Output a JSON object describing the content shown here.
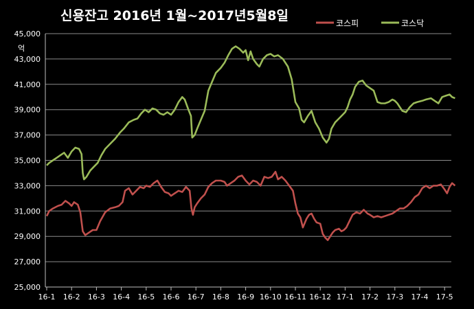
{
  "chart_data": {
    "type": "line",
    "title": "신용잔고 2016년 1월~2017년5월8일",
    "ylabel": "억",
    "xlabel": "",
    "ylim": [
      25000,
      45000
    ],
    "yticks": [
      25000,
      27000,
      29000,
      31000,
      33000,
      35000,
      37000,
      39000,
      41000,
      43000,
      45000
    ],
    "ytick_labels": [
      "25,000",
      "27,000",
      "29,000",
      "31,000",
      "33,000",
      "35,000",
      "37,000",
      "39,000",
      "41,000",
      "43,000",
      "45,000"
    ],
    "xtick_labels": [
      "16-1",
      "16-2",
      "16-3",
      "16-4",
      "16-5",
      "16-6",
      "16-7",
      "16-8",
      "16-9",
      "16-10",
      "16-11",
      "16-12",
      "17-1",
      "17-2",
      "17-3",
      "17-4",
      "17-5"
    ],
    "grid": "horizontal",
    "legend_position": "top-right",
    "x_unit": "months since 2016-01 (fractional)",
    "series": [
      {
        "name": "코스피",
        "color": "#c0504d",
        "points": [
          [
            0.0,
            30600
          ],
          [
            0.1,
            31000
          ],
          [
            0.25,
            31200
          ],
          [
            0.45,
            31400
          ],
          [
            0.6,
            31500
          ],
          [
            0.75,
            31800
          ],
          [
            0.9,
            31600
          ],
          [
            1.0,
            31400
          ],
          [
            1.1,
            31700
          ],
          [
            1.25,
            31500
          ],
          [
            1.35,
            30900
          ],
          [
            1.45,
            29400
          ],
          [
            1.55,
            29100
          ],
          [
            1.7,
            29300
          ],
          [
            1.85,
            29500
          ],
          [
            2.0,
            29500
          ],
          [
            2.15,
            30200
          ],
          [
            2.35,
            30900
          ],
          [
            2.55,
            31200
          ],
          [
            2.75,
            31300
          ],
          [
            2.9,
            31400
          ],
          [
            3.05,
            31700
          ],
          [
            3.15,
            32600
          ],
          [
            3.3,
            32800
          ],
          [
            3.45,
            32300
          ],
          [
            3.6,
            32600
          ],
          [
            3.75,
            32900
          ],
          [
            3.9,
            32800
          ],
          [
            4.0,
            33000
          ],
          [
            4.15,
            32900
          ],
          [
            4.3,
            33200
          ],
          [
            4.45,
            33400
          ],
          [
            4.6,
            32900
          ],
          [
            4.75,
            32500
          ],
          [
            4.9,
            32400
          ],
          [
            5.0,
            32200
          ],
          [
            5.15,
            32400
          ],
          [
            5.3,
            32600
          ],
          [
            5.45,
            32500
          ],
          [
            5.6,
            32900
          ],
          [
            5.75,
            32600
          ],
          [
            5.82,
            31200
          ],
          [
            5.88,
            30700
          ],
          [
            5.95,
            31300
          ],
          [
            6.05,
            31600
          ],
          [
            6.2,
            32000
          ],
          [
            6.35,
            32300
          ],
          [
            6.5,
            32900
          ],
          [
            6.65,
            33200
          ],
          [
            6.8,
            33400
          ],
          [
            7.0,
            33400
          ],
          [
            7.15,
            33300
          ],
          [
            7.25,
            33000
          ],
          [
            7.4,
            33200
          ],
          [
            7.55,
            33400
          ],
          [
            7.7,
            33700
          ],
          [
            7.85,
            33800
          ],
          [
            8.0,
            33400
          ],
          [
            8.15,
            33100
          ],
          [
            8.3,
            33400
          ],
          [
            8.45,
            33300
          ],
          [
            8.6,
            33000
          ],
          [
            8.75,
            33700
          ],
          [
            8.9,
            33600
          ],
          [
            9.05,
            33700
          ],
          [
            9.2,
            34100
          ],
          [
            9.3,
            33500
          ],
          [
            9.45,
            33700
          ],
          [
            9.6,
            33400
          ],
          [
            9.75,
            33000
          ],
          [
            9.9,
            32600
          ],
          [
            10.0,
            31600
          ],
          [
            10.1,
            30800
          ],
          [
            10.2,
            30500
          ],
          [
            10.3,
            29700
          ],
          [
            10.45,
            30400
          ],
          [
            10.55,
            30700
          ],
          [
            10.65,
            30800
          ],
          [
            10.75,
            30400
          ],
          [
            10.85,
            30100
          ],
          [
            11.0,
            30000
          ],
          [
            11.1,
            29200
          ],
          [
            11.2,
            28900
          ],
          [
            11.3,
            28700
          ],
          [
            11.4,
            29000
          ],
          [
            11.5,
            29300
          ],
          [
            11.6,
            29500
          ],
          [
            11.75,
            29600
          ],
          [
            11.85,
            29400
          ],
          [
            11.95,
            29500
          ],
          [
            12.05,
            29700
          ],
          [
            12.2,
            30300
          ],
          [
            12.3,
            30700
          ],
          [
            12.45,
            30900
          ],
          [
            12.6,
            30800
          ],
          [
            12.75,
            31100
          ],
          [
            12.9,
            30800
          ],
          [
            13.0,
            30700
          ],
          [
            13.15,
            30500
          ],
          [
            13.3,
            30600
          ],
          [
            13.45,
            30500
          ],
          [
            13.6,
            30600
          ],
          [
            13.75,
            30700
          ],
          [
            13.9,
            30800
          ],
          [
            14.05,
            31000
          ],
          [
            14.2,
            31200
          ],
          [
            14.35,
            31200
          ],
          [
            14.5,
            31400
          ],
          [
            14.65,
            31700
          ],
          [
            14.8,
            32100
          ],
          [
            14.95,
            32300
          ],
          [
            15.1,
            32800
          ],
          [
            15.25,
            33000
          ],
          [
            15.4,
            32800
          ],
          [
            15.55,
            33000
          ],
          [
            15.7,
            33000
          ],
          [
            15.85,
            33100
          ],
          [
            16.0,
            32700
          ],
          [
            16.1,
            32400
          ],
          [
            16.2,
            32900
          ],
          [
            16.3,
            33200
          ],
          [
            16.42,
            33000
          ]
        ]
      },
      {
        "name": "코스닥",
        "color": "#9bbb59",
        "points": [
          [
            0.0,
            34600
          ],
          [
            0.1,
            34800
          ],
          [
            0.25,
            35000
          ],
          [
            0.4,
            35200
          ],
          [
            0.55,
            35400
          ],
          [
            0.7,
            35600
          ],
          [
            0.85,
            35200
          ],
          [
            1.0,
            35700
          ],
          [
            1.15,
            36000
          ],
          [
            1.3,
            35900
          ],
          [
            1.4,
            35500
          ],
          [
            1.45,
            34000
          ],
          [
            1.5,
            33500
          ],
          [
            1.6,
            33700
          ],
          [
            1.75,
            34200
          ],
          [
            1.9,
            34500
          ],
          [
            2.05,
            34800
          ],
          [
            2.2,
            35400
          ],
          [
            2.35,
            35900
          ],
          [
            2.55,
            36300
          ],
          [
            2.75,
            36700
          ],
          [
            2.95,
            37200
          ],
          [
            3.1,
            37500
          ],
          [
            3.3,
            38000
          ],
          [
            3.5,
            38200
          ],
          [
            3.65,
            38300
          ],
          [
            3.8,
            38700
          ],
          [
            3.95,
            39000
          ],
          [
            4.1,
            38800
          ],
          [
            4.25,
            39100
          ],
          [
            4.4,
            39000
          ],
          [
            4.55,
            38700
          ],
          [
            4.7,
            38600
          ],
          [
            4.85,
            38800
          ],
          [
            5.0,
            38600
          ],
          [
            5.15,
            39000
          ],
          [
            5.3,
            39600
          ],
          [
            5.45,
            40000
          ],
          [
            5.55,
            39800
          ],
          [
            5.7,
            39000
          ],
          [
            5.8,
            38500
          ],
          [
            5.85,
            36800
          ],
          [
            5.95,
            37000
          ],
          [
            6.05,
            37500
          ],
          [
            6.2,
            38200
          ],
          [
            6.35,
            38900
          ],
          [
            6.5,
            40500
          ],
          [
            6.65,
            41200
          ],
          [
            6.8,
            41900
          ],
          [
            7.0,
            42300
          ],
          [
            7.15,
            42700
          ],
          [
            7.3,
            43300
          ],
          [
            7.45,
            43800
          ],
          [
            7.6,
            44000
          ],
          [
            7.75,
            43800
          ],
          [
            7.9,
            43500
          ],
          [
            8.0,
            43700
          ],
          [
            8.1,
            42900
          ],
          [
            8.2,
            43600
          ],
          [
            8.3,
            43000
          ],
          [
            8.45,
            42600
          ],
          [
            8.55,
            42400
          ],
          [
            8.7,
            43000
          ],
          [
            8.85,
            43300
          ],
          [
            9.0,
            43400
          ],
          [
            9.15,
            43200
          ],
          [
            9.3,
            43300
          ],
          [
            9.5,
            43000
          ],
          [
            9.7,
            42400
          ],
          [
            9.85,
            41400
          ],
          [
            10.0,
            39600
          ],
          [
            10.15,
            39100
          ],
          [
            10.25,
            38200
          ],
          [
            10.35,
            38000
          ],
          [
            10.5,
            38500
          ],
          [
            10.65,
            38900
          ],
          [
            10.8,
            38000
          ],
          [
            10.95,
            37500
          ],
          [
            11.1,
            36800
          ],
          [
            11.25,
            36400
          ],
          [
            11.35,
            36700
          ],
          [
            11.45,
            37500
          ],
          [
            11.6,
            38000
          ],
          [
            11.75,
            38300
          ],
          [
            11.9,
            38600
          ],
          [
            12.0,
            38800
          ],
          [
            12.1,
            39200
          ],
          [
            12.2,
            39800
          ],
          [
            12.3,
            40200
          ],
          [
            12.4,
            40800
          ],
          [
            12.55,
            41200
          ],
          [
            12.7,
            41300
          ],
          [
            12.85,
            40900
          ],
          [
            13.0,
            40700
          ],
          [
            13.15,
            40500
          ],
          [
            13.3,
            39600
          ],
          [
            13.45,
            39500
          ],
          [
            13.6,
            39500
          ],
          [
            13.75,
            39600
          ],
          [
            13.9,
            39800
          ],
          [
            14.0,
            39700
          ],
          [
            14.1,
            39500
          ],
          [
            14.2,
            39200
          ],
          [
            14.3,
            38900
          ],
          [
            14.45,
            38800
          ],
          [
            14.6,
            39200
          ],
          [
            14.75,
            39500
          ],
          [
            14.9,
            39600
          ],
          [
            15.1,
            39700
          ],
          [
            15.25,
            39800
          ],
          [
            15.45,
            39900
          ],
          [
            15.6,
            39700
          ],
          [
            15.75,
            39500
          ],
          [
            15.9,
            40000
          ],
          [
            16.05,
            40100
          ],
          [
            16.2,
            40200
          ],
          [
            16.3,
            40000
          ],
          [
            16.42,
            39900
          ]
        ]
      }
    ]
  }
}
